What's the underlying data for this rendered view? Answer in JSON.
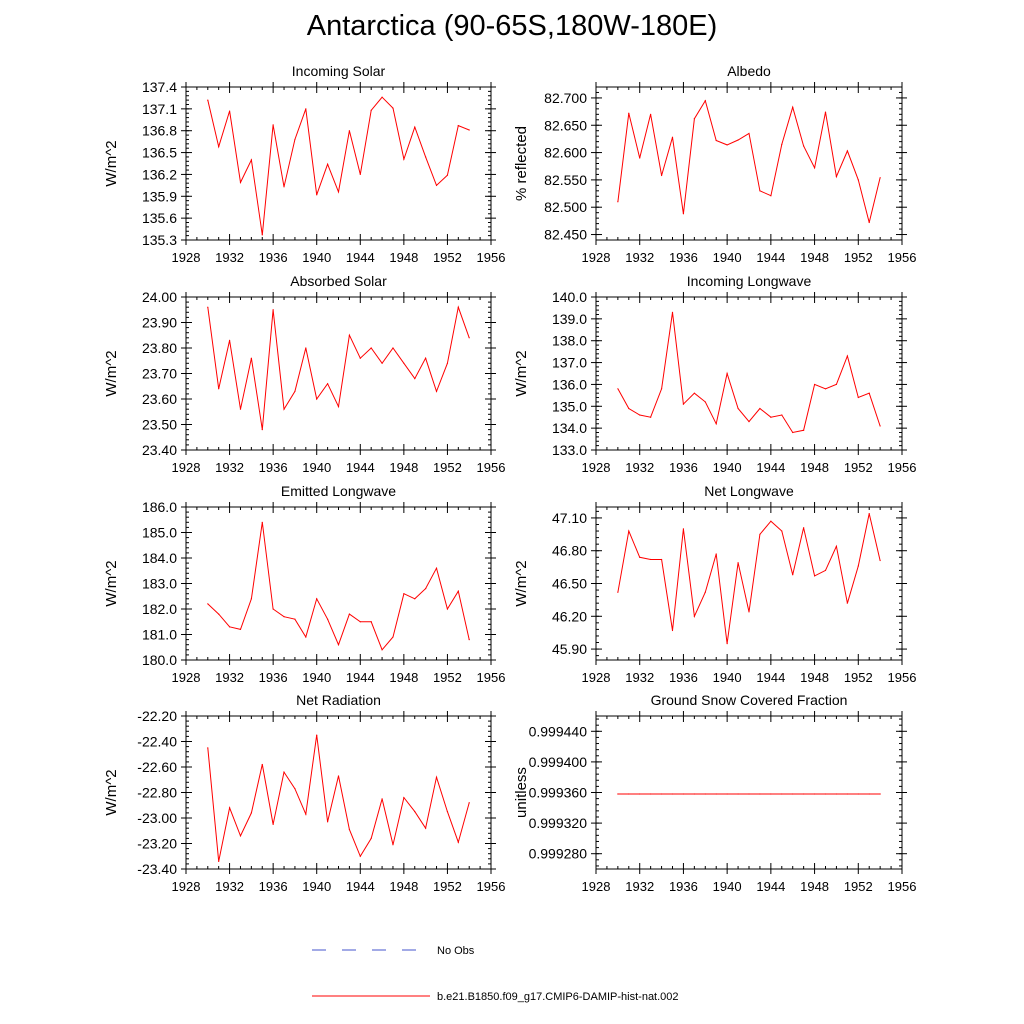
{
  "page": {
    "title": "Antarctica (90-65S,180W-180E)"
  },
  "legend": {
    "items": [
      {
        "label": "No Obs",
        "color": "#4455cc",
        "style": "dashed"
      },
      {
        "label": "b.e21.B1850.f09_g17.CMIP6-DAMIP-hist-nat.002",
        "color": "#ff0000",
        "style": "solid"
      }
    ]
  },
  "x_ticks": [
    "1928",
    "1932",
    "1936",
    "1940",
    "1944",
    "1948",
    "1952",
    "1956"
  ],
  "chart_data": [
    {
      "type": "line",
      "title": "Incoming Solar",
      "ylabel": "W/m^2",
      "xlim": [
        1928,
        1956
      ],
      "ylim": [
        135.3,
        137.4
      ],
      "yticks": [
        "135.3",
        "135.6",
        "135.9",
        "136.2",
        "136.5",
        "136.8",
        "137.1",
        "137.4"
      ],
      "series": [
        {
          "color": "#ff0000",
          "x": [
            1930,
            1931,
            1932,
            1933,
            1934,
            1935,
            1936,
            1937,
            1938,
            1939,
            1940,
            1941,
            1942,
            1943,
            1944,
            1945,
            1946,
            1947,
            1948,
            1949,
            1950,
            1951,
            1952,
            1953,
            1954
          ],
          "values": [
            137.22,
            136.58,
            137.07,
            136.09,
            136.4,
            135.37,
            136.88,
            136.03,
            136.68,
            137.1,
            135.92,
            136.34,
            135.96,
            136.8,
            136.2,
            137.08,
            137.26,
            137.11,
            136.41,
            136.85,
            136.44,
            136.05,
            136.19,
            136.87,
            136.81
          ]
        }
      ]
    },
    {
      "type": "line",
      "title": "Albedo",
      "ylabel": "% reflected",
      "xlim": [
        1928,
        1956
      ],
      "ylim": [
        82.44,
        82.72
      ],
      "yticks": [
        "82.450",
        "82.500",
        "82.550",
        "82.600",
        "82.650",
        "82.700"
      ],
      "series": [
        {
          "color": "#ff0000",
          "x": [
            1930,
            1931,
            1932,
            1933,
            1934,
            1935,
            1936,
            1937,
            1938,
            1939,
            1940,
            1941,
            1942,
            1943,
            1944,
            1945,
            1946,
            1947,
            1948,
            1949,
            1950,
            1951,
            1952,
            1953,
            1954
          ],
          "values": [
            82.51,
            82.672,
            82.59,
            82.67,
            82.558,
            82.628,
            82.488,
            82.662,
            82.695,
            82.622,
            82.614,
            82.623,
            82.635,
            82.53,
            82.521,
            82.615,
            82.683,
            82.612,
            82.572,
            82.674,
            82.556,
            82.603,
            82.55,
            82.472,
            82.554
          ]
        }
      ]
    },
    {
      "type": "line",
      "title": "Absorbed Solar",
      "ylabel": "W/m^2",
      "xlim": [
        1928,
        1956
      ],
      "ylim": [
        23.4,
        24.0
      ],
      "yticks": [
        "23.40",
        "23.50",
        "23.60",
        "23.70",
        "23.80",
        "23.90",
        "24.00"
      ],
      "series": [
        {
          "color": "#ff0000",
          "x": [
            1930,
            1931,
            1932,
            1933,
            1934,
            1935,
            1936,
            1937,
            1938,
            1939,
            1940,
            1941,
            1942,
            1943,
            1944,
            1945,
            1946,
            1947,
            1948,
            1949,
            1950,
            1951,
            1952,
            1953,
            1954
          ],
          "values": [
            23.96,
            23.64,
            23.83,
            23.56,
            23.76,
            23.48,
            23.95,
            23.56,
            23.63,
            23.8,
            23.6,
            23.66,
            23.57,
            23.85,
            23.76,
            23.8,
            23.74,
            23.8,
            23.74,
            23.68,
            23.76,
            23.63,
            23.74,
            23.96,
            23.84
          ]
        }
      ]
    },
    {
      "type": "line",
      "title": "Incoming Longwave",
      "ylabel": "W/m^2",
      "xlim": [
        1928,
        1956
      ],
      "ylim": [
        133.0,
        140.0
      ],
      "yticks": [
        "133.0",
        "134.0",
        "135.0",
        "136.0",
        "137.0",
        "138.0",
        "139.0",
        "140.0"
      ],
      "series": [
        {
          "color": "#ff0000",
          "x": [
            1930,
            1931,
            1932,
            1933,
            1934,
            1935,
            1936,
            1937,
            1938,
            1939,
            1940,
            1941,
            1942,
            1943,
            1944,
            1945,
            1946,
            1947,
            1948,
            1949,
            1950,
            1951,
            1952,
            1953,
            1954
          ],
          "values": [
            135.8,
            134.9,
            134.6,
            134.5,
            135.8,
            139.3,
            135.1,
            135.6,
            135.2,
            134.2,
            136.5,
            134.9,
            134.3,
            134.9,
            134.5,
            134.6,
            133.8,
            133.9,
            136.0,
            135.8,
            136.0,
            137.3,
            135.4,
            135.6,
            134.1
          ]
        }
      ]
    },
    {
      "type": "line",
      "title": "Emitted Longwave",
      "ylabel": "W/m^2",
      "xlim": [
        1928,
        1956
      ],
      "ylim": [
        180.0,
        186.0
      ],
      "yticks": [
        "180.0",
        "181.0",
        "182.0",
        "183.0",
        "184.0",
        "185.0",
        "186.0"
      ],
      "series": [
        {
          "color": "#ff0000",
          "x": [
            1930,
            1931,
            1932,
            1933,
            1934,
            1935,
            1936,
            1937,
            1938,
            1939,
            1940,
            1941,
            1942,
            1943,
            1944,
            1945,
            1946,
            1947,
            1948,
            1949,
            1950,
            1951,
            1952,
            1953,
            1954
          ],
          "values": [
            182.2,
            181.8,
            181.3,
            181.2,
            182.4,
            185.4,
            182.0,
            181.7,
            181.6,
            180.9,
            182.4,
            181.6,
            180.6,
            181.8,
            181.5,
            181.5,
            180.4,
            180.9,
            182.6,
            182.4,
            182.8,
            183.6,
            182.0,
            182.7,
            180.8
          ]
        }
      ]
    },
    {
      "type": "line",
      "title": "Net Longwave",
      "ylabel": "W/m^2",
      "xlim": [
        1928,
        1956
      ],
      "ylim": [
        45.8,
        47.2
      ],
      "yticks": [
        "45.90",
        "46.20",
        "46.50",
        "46.80",
        "47.10"
      ],
      "series": [
        {
          "color": "#ff0000",
          "x": [
            1930,
            1931,
            1932,
            1933,
            1934,
            1935,
            1936,
            1937,
            1938,
            1939,
            1940,
            1941,
            1942,
            1943,
            1944,
            1945,
            1946,
            1947,
            1948,
            1949,
            1950,
            1951,
            1952,
            1953,
            1954
          ],
          "values": [
            46.42,
            46.98,
            46.74,
            46.72,
            46.72,
            46.07,
            47.0,
            46.2,
            46.42,
            46.77,
            45.95,
            46.69,
            46.24,
            46.95,
            47.07,
            46.98,
            46.58,
            47.01,
            46.57,
            46.62,
            46.84,
            46.32,
            46.66,
            47.14,
            46.71
          ]
        }
      ]
    },
    {
      "type": "line",
      "title": "Net Radiation",
      "ylabel": "W/m^2",
      "xlim": [
        1928,
        1956
      ],
      "ylim": [
        -23.4,
        -22.2
      ],
      "yticks": [
        "-23.40",
        "-23.20",
        "-23.00",
        "-22.80",
        "-22.60",
        "-22.40",
        "-22.20"
      ],
      "series": [
        {
          "color": "#ff0000",
          "x": [
            1930,
            1931,
            1932,
            1933,
            1934,
            1935,
            1936,
            1937,
            1938,
            1939,
            1940,
            1941,
            1942,
            1943,
            1944,
            1945,
            1946,
            1947,
            1948,
            1949,
            1950,
            1951,
            1952,
            1953,
            1954
          ],
          "values": [
            -22.45,
            -23.34,
            -22.92,
            -23.14,
            -22.96,
            -22.58,
            -23.05,
            -22.64,
            -22.77,
            -22.97,
            -22.35,
            -23.03,
            -22.67,
            -23.09,
            -23.3,
            -23.16,
            -22.85,
            -23.21,
            -22.84,
            -22.95,
            -23.08,
            -22.68,
            -22.95,
            -23.19,
            -22.88
          ]
        }
      ]
    },
    {
      "type": "line",
      "title": "Ground Snow Covered Fraction",
      "ylabel": "unitless",
      "xlim": [
        1928,
        1956
      ],
      "ylim": [
        0.99926,
        0.99946
      ],
      "yticks": [
        "0.999280",
        "0.999320",
        "0.999360",
        "0.999400",
        "0.999440"
      ],
      "series": [
        {
          "color": "#ff0000",
          "x": [
            1930,
            1931,
            1932,
            1933,
            1934,
            1935,
            1936,
            1937,
            1938,
            1939,
            1940,
            1941,
            1942,
            1943,
            1944,
            1945,
            1946,
            1947,
            1948,
            1949,
            1950,
            1951,
            1952,
            1953,
            1954
          ],
          "values": [
            0.999358,
            0.999358,
            0.999358,
            0.999358,
            0.999358,
            0.999358,
            0.999358,
            0.999358,
            0.999358,
            0.999358,
            0.999358,
            0.999358,
            0.999358,
            0.999358,
            0.999358,
            0.999358,
            0.999358,
            0.999358,
            0.999358,
            0.999358,
            0.999358,
            0.999358,
            0.999358,
            0.999358,
            0.999358
          ]
        }
      ]
    }
  ]
}
